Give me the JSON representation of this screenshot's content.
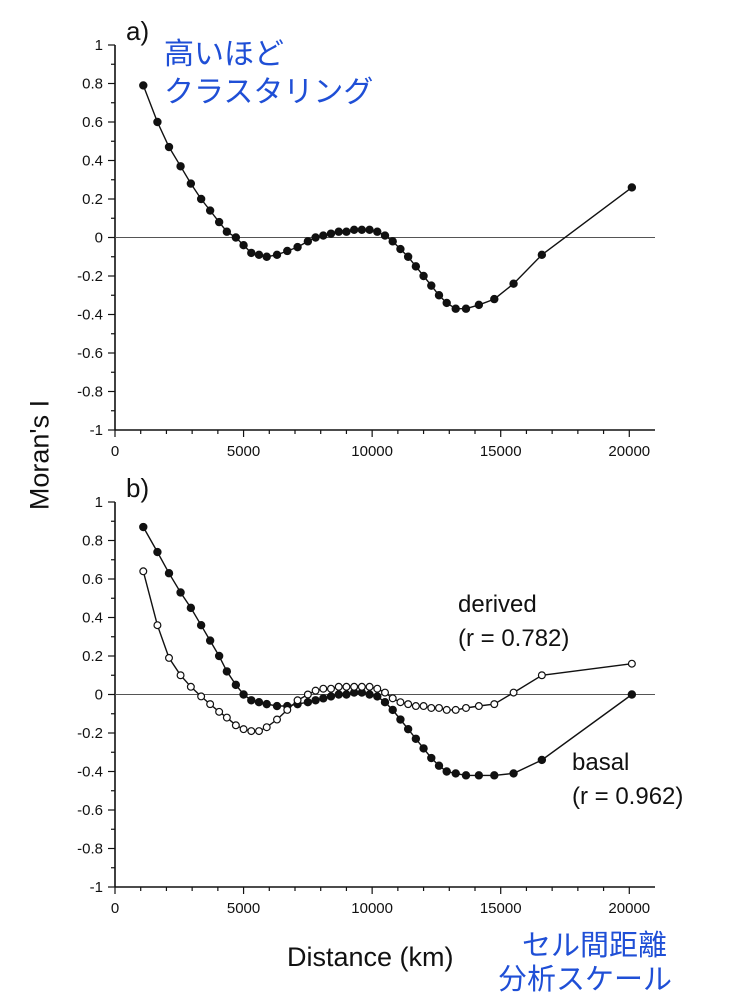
{
  "chart_data": [
    {
      "panel_label": "a)",
      "type": "line",
      "xlim": [
        0,
        21000
      ],
      "ylim": [
        -1,
        1
      ],
      "xticks": [
        "0",
        "5000",
        "10000",
        "15000",
        "20000"
      ],
      "yticks": [
        "1",
        "0.8",
        "0.6",
        "0.4",
        "0.2",
        "0",
        "-0.2",
        "-0.4",
        "-0.6",
        "-0.8",
        "-1"
      ],
      "zero_line": true,
      "series": [
        {
          "marker": "filled",
          "x": [
            1100,
            1650,
            2100,
            2550,
            2950,
            3350,
            3700,
            4050,
            4350,
            4700,
            5000,
            5300,
            5600,
            5900,
            6300,
            6700,
            7100,
            7500,
            7800,
            8100,
            8400,
            8700,
            9000,
            9300,
            9600,
            9900,
            10200,
            10500,
            10800,
            11100,
            11400,
            11700,
            12000,
            12300,
            12600,
            12900,
            13250,
            13650,
            14150,
            14750,
            15500,
            16600,
            20100
          ],
          "y": [
            0.79,
            0.6,
            0.47,
            0.37,
            0.28,
            0.2,
            0.14,
            0.08,
            0.03,
            0.0,
            -0.04,
            -0.08,
            -0.09,
            -0.1,
            -0.09,
            -0.07,
            -0.05,
            -0.02,
            0.0,
            0.01,
            0.02,
            0.03,
            0.03,
            0.04,
            0.04,
            0.04,
            0.03,
            0.01,
            -0.02,
            -0.06,
            -0.1,
            -0.15,
            -0.2,
            -0.25,
            -0.3,
            -0.34,
            -0.37,
            -0.37,
            -0.35,
            -0.32,
            -0.24,
            -0.09,
            0.26
          ]
        }
      ]
    },
    {
      "panel_label": "b)",
      "type": "line",
      "xlim": [
        0,
        21000
      ],
      "ylim": [
        -1,
        1
      ],
      "xticks": [
        "0",
        "5000",
        "10000",
        "15000",
        "20000"
      ],
      "yticks": [
        "1",
        "0.8",
        "0.6",
        "0.4",
        "0.2",
        "0",
        "-0.2",
        "-0.4",
        "-0.6",
        "-0.8",
        "-1"
      ],
      "zero_line": true,
      "series": [
        {
          "name": "basal",
          "stat": "(r = 0.962)",
          "marker": "filled",
          "x": [
            1100,
            1650,
            2100,
            2550,
            2950,
            3350,
            3700,
            4050,
            4350,
            4700,
            5000,
            5300,
            5600,
            5900,
            6300,
            6700,
            7100,
            7500,
            7800,
            8100,
            8400,
            8700,
            9000,
            9300,
            9600,
            9900,
            10200,
            10500,
            10800,
            11100,
            11400,
            11700,
            12000,
            12300,
            12600,
            12900,
            13250,
            13650,
            14150,
            14750,
            15500,
            16600,
            20100
          ],
          "y": [
            0.87,
            0.74,
            0.63,
            0.53,
            0.45,
            0.36,
            0.28,
            0.2,
            0.12,
            0.05,
            0.0,
            -0.03,
            -0.04,
            -0.05,
            -0.06,
            -0.06,
            -0.05,
            -0.04,
            -0.03,
            -0.02,
            -0.01,
            0.0,
            0.0,
            0.01,
            0.01,
            0.0,
            -0.01,
            -0.04,
            -0.08,
            -0.13,
            -0.18,
            -0.23,
            -0.28,
            -0.33,
            -0.37,
            -0.4,
            -0.41,
            -0.42,
            -0.42,
            -0.42,
            -0.41,
            -0.34,
            0.0
          ]
        },
        {
          "name": "derived",
          "stat": "(r = 0.782)",
          "marker": "open",
          "x": [
            1100,
            1650,
            2100,
            2550,
            2950,
            3350,
            3700,
            4050,
            4350,
            4700,
            5000,
            5300,
            5600,
            5900,
            6300,
            6700,
            7100,
            7500,
            7800,
            8100,
            8400,
            8700,
            9000,
            9300,
            9600,
            9900,
            10200,
            10500,
            10800,
            11100,
            11400,
            11700,
            12000,
            12300,
            12600,
            12900,
            13250,
            13650,
            14150,
            14750,
            15500,
            16600,
            20100
          ],
          "y": [
            0.64,
            0.36,
            0.19,
            0.1,
            0.04,
            -0.01,
            -0.05,
            -0.09,
            -0.12,
            -0.16,
            -0.18,
            -0.19,
            -0.19,
            -0.17,
            -0.13,
            -0.08,
            -0.03,
            0.0,
            0.02,
            0.03,
            0.03,
            0.04,
            0.04,
            0.04,
            0.04,
            0.04,
            0.03,
            0.01,
            -0.02,
            -0.04,
            -0.05,
            -0.06,
            -0.06,
            -0.07,
            -0.07,
            -0.08,
            -0.08,
            -0.07,
            -0.06,
            -0.05,
            0.01,
            0.1,
            0.16
          ]
        }
      ]
    }
  ],
  "ylabel": "Moran's I",
  "xlabel": "Distance (km)",
  "annotations": {
    "top_line1": "高いほど",
    "top_line2": "クラスタリング",
    "bottom_line1": "セル間距離",
    "bottom_line2": "分析スケール"
  },
  "colors": {
    "annotation": "#1f4fd6",
    "ink": "#111111"
  }
}
